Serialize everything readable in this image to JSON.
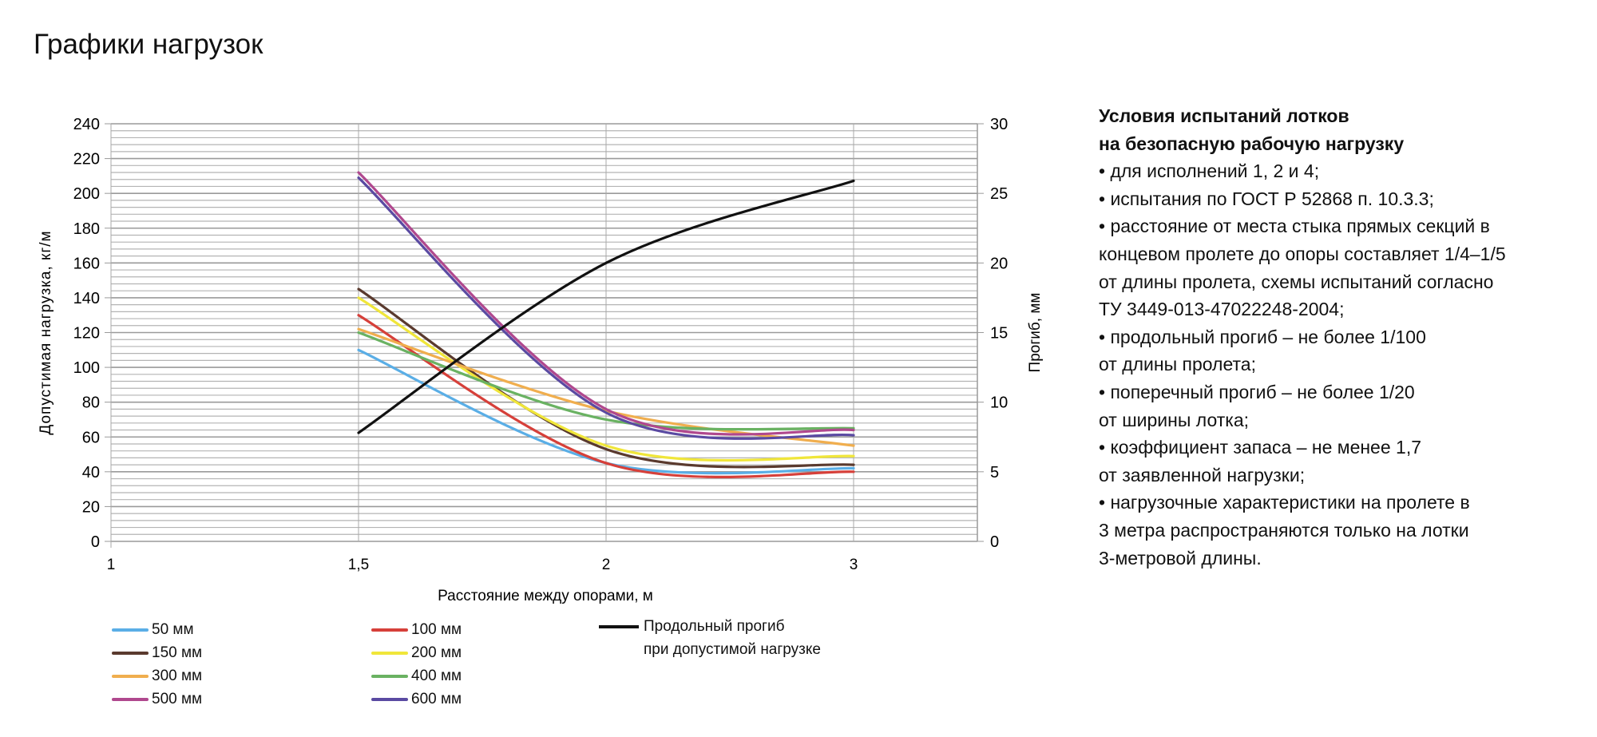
{
  "title": "Графики нагрузок",
  "notes": {
    "heading": [
      "Условия испытаний лотков",
      "на безопасную рабочую нагрузку"
    ],
    "lines": [
      "• для исполнений 1, 2 и 4;",
      "• испытания по ГОСТ Р 52868 п. 10.3.3;",
      "• расстояние от места стыка прямых секций в",
      "концевом пролете до опоры составляет 1/4–1/5",
      "от длины пролета, схемы испытаний согласно",
      "ТУ 3449-013-47022248-2004;",
      "• продольный прогиб – не более 1/100",
      "от длины пролета;",
      "• поперечный прогиб – не более 1/20",
      "от ширины лотка;",
      "• коэффициент запаса – не менее 1,7",
      "от заявленной нагрузки;",
      "• нагрузочные характеристики на пролете в",
      "3 метра распространяются только на лотки",
      "3-метровой длины."
    ]
  },
  "chart_data": {
    "type": "line",
    "categories": [
      "1",
      "1,5",
      "2",
      "3"
    ],
    "xlabel": "Расстояние между опорами, м",
    "ylabel": "Допустимая нагрузка, кг/м",
    "y2label": "Прогиб, мм",
    "ylim": [
      0,
      240
    ],
    "y2lim": [
      0,
      30
    ],
    "yticks": [
      "0",
      "20",
      "40",
      "60",
      "80",
      "100",
      "120",
      "140",
      "160",
      "180",
      "200",
      "220",
      "240"
    ],
    "y2ticks": [
      "0",
      "5",
      "10",
      "15",
      "20",
      "25",
      "30"
    ],
    "grid": true,
    "legend_position": "bottom",
    "series": [
      {
        "name": "50 мм",
        "color": "#5aaee6",
        "axis": "left",
        "values": [
          null,
          110,
          45,
          42
        ]
      },
      {
        "name": "100 мм",
        "color": "#d6403a",
        "axis": "left",
        "values": [
          null,
          130,
          45,
          40
        ]
      },
      {
        "name": "150 мм",
        "color": "#5a3a2e",
        "axis": "left",
        "values": [
          null,
          145,
          53,
          44
        ]
      },
      {
        "name": "200 мм",
        "color": "#f0e63a",
        "axis": "left",
        "values": [
          null,
          140,
          55,
          49
        ]
      },
      {
        "name": "300 мм",
        "color": "#f0ae4e",
        "axis": "left",
        "values": [
          null,
          122,
          75,
          55
        ]
      },
      {
        "name": "400 мм",
        "color": "#6ab262",
        "axis": "left",
        "values": [
          null,
          120,
          70,
          65
        ]
      },
      {
        "name": "500 мм",
        "color": "#b0488e",
        "axis": "left",
        "values": [
          null,
          212,
          76,
          64
        ]
      },
      {
        "name": "600 мм",
        "color": "#5a4aa2",
        "axis": "left",
        "values": [
          null,
          209,
          74,
          61
        ]
      }
    ],
    "deflection": {
      "name": [
        "Продольный прогиб",
        "при допустимой нагрузке"
      ],
      "color": "#111111",
      "axis": "right",
      "values": [
        null,
        7.8,
        20,
        25.9
      ]
    }
  }
}
